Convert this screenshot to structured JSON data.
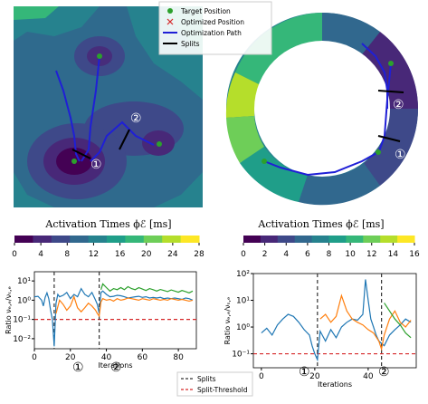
{
  "colormap": [
    "#440154",
    "#482878",
    "#3e4989",
    "#31688e",
    "#26828e",
    "#1f9e89",
    "#35b779",
    "#6ece58",
    "#b5de2b",
    "#fde725"
  ],
  "colors": {
    "target": "#2ca02c",
    "optimized": "#d62728",
    "path": "#1f1fd6",
    "split": "#000000",
    "ratio1": "#1f77b4",
    "ratio2": "#ff7f0e",
    "ratio3": "#2ca02c",
    "splits_line": "#333333",
    "threshold": "#d62728"
  },
  "legend_top": {
    "items": [
      {
        "label": "Target Position",
        "marker": "dot"
      },
      {
        "label": "Optimized Position",
        "marker": "x"
      },
      {
        "label": "Optimization Path",
        "marker": "line"
      },
      {
        "label": "Splits",
        "marker": "split"
      }
    ]
  },
  "legend_bottom": {
    "items": [
      {
        "label": "Splits",
        "style": "dashed-dark"
      },
      {
        "label": "Split-Threshold",
        "style": "dashed-red"
      }
    ]
  },
  "colorbars": [
    {
      "title": "Activation Times ϕℰ [ms]",
      "ticks": [
        "0",
        "4",
        "8",
        "12",
        "16",
        "20",
        "24",
        "28"
      ],
      "vmin": 0,
      "vmax": 28
    },
    {
      "title": "Activation Times ϕℰ [ms]",
      "ticks": [
        "0",
        "2",
        "4",
        "6",
        "8",
        "10",
        "12",
        "14",
        "16"
      ],
      "vmin": 0,
      "vmax": 16
    }
  ],
  "region_labels": [
    "①",
    "②"
  ],
  "chart_data": [
    {
      "type": "line",
      "title": "",
      "xlabel": "Iterations",
      "ylabel": "Ratio νₑ,ₑ/νₛ,ₑ",
      "yscale": "log",
      "xlim": [
        0,
        90
      ],
      "ylim": [
        0.003,
        30
      ],
      "xticks": [
        "0",
        "20",
        "40",
        "60",
        "80"
      ],
      "yticks": [
        "10⁻²",
        "10⁻¹",
        "10⁰",
        "10¹"
      ],
      "splits": [
        11,
        36
      ],
      "threshold": 0.1,
      "series": [
        {
          "x": [
            0,
            2,
            4,
            5,
            6,
            7,
            8,
            9,
            10,
            11,
            12,
            13,
            14,
            16,
            18,
            20,
            22,
            24,
            26,
            28,
            30,
            32,
            34,
            35,
            36,
            37,
            38,
            40,
            42,
            44,
            46,
            48,
            50,
            52,
            54,
            56,
            58,
            60,
            62,
            64,
            66,
            68,
            70,
            72,
            74,
            76,
            78,
            80,
            82,
            84,
            86,
            88
          ],
          "y": [
            1.5,
            1.6,
            1.0,
            0.5,
            1.4,
            2.4,
            1.2,
            0.3,
            0.1,
            0.004,
            0.7,
            2.0,
            1.5,
            1.8,
            2.5,
            1.2,
            2.0,
            1.5,
            4.0,
            2.0,
            1.5,
            2.5,
            1.0,
            0.6,
            0.2,
            2.5,
            3.0,
            2.0,
            1.5,
            1.6,
            1.8,
            1.7,
            1.5,
            1.3,
            1.4,
            1.5,
            1.6,
            1.4,
            1.5,
            1.3,
            1.4,
            1.3,
            1.4,
            1.2,
            1.3,
            1.2,
            1.3,
            1.2,
            1.1,
            1.3,
            1.2,
            1.0
          ]
        },
        {
          "x": [
            12,
            14,
            16,
            18,
            20,
            22,
            24,
            26,
            28,
            30,
            32,
            34,
            35,
            36,
            37,
            38,
            40,
            42,
            44,
            46,
            48,
            50,
            52,
            54,
            56,
            58,
            60,
            62,
            64,
            66,
            68,
            70,
            72,
            74,
            76,
            78,
            80,
            82,
            84,
            86,
            88
          ],
          "y": [
            0.2,
            1.0,
            0.6,
            0.3,
            0.5,
            1.5,
            0.4,
            0.25,
            0.4,
            0.7,
            0.5,
            0.3,
            0.2,
            0.15,
            0.8,
            1.2,
            1.0,
            1.1,
            0.9,
            1.2,
            1.0,
            1.1,
            1.3,
            1.2,
            1.1,
            1.0,
            1.2,
            1.1,
            1.0,
            1.2,
            1.1,
            1.0,
            1.1,
            1.0,
            1.2,
            1.1,
            1.0,
            1.1,
            1.0,
            0.9,
            1.0
          ]
        },
        {
          "x": [
            37,
            38,
            40,
            42,
            44,
            46,
            48,
            50,
            52,
            54,
            56,
            58,
            60,
            62,
            64,
            66,
            68,
            70,
            72,
            74,
            76,
            78,
            80,
            82,
            84,
            86,
            88
          ],
          "y": [
            3.5,
            7.0,
            4.5,
            3.0,
            4.0,
            3.5,
            4.5,
            3.5,
            5.0,
            4.0,
            3.5,
            4.5,
            3.8,
            3.2,
            4.0,
            3.5,
            3.0,
            3.6,
            3.2,
            2.8,
            3.4,
            3.0,
            2.6,
            3.2,
            2.8,
            2.4,
            3.0
          ]
        }
      ]
    },
    {
      "type": "line",
      "title": "",
      "xlabel": "Iterations",
      "ylabel": "Ratio νₑ,ₑ/νₛ,ₑ",
      "yscale": "log",
      "xlim": [
        -3,
        58
      ],
      "ylim": [
        0.03,
        100
      ],
      "xticks": [
        "0",
        "20",
        "40"
      ],
      "yticks": [
        "10⁻¹",
        "10⁰",
        "10¹",
        "10²"
      ],
      "splits": [
        21,
        45
      ],
      "threshold": 0.1,
      "series": [
        {
          "x": [
            0,
            2,
            4,
            6,
            8,
            10,
            12,
            14,
            16,
            18,
            19,
            20,
            21,
            22,
            24,
            26,
            28,
            30,
            32,
            34,
            36,
            38,
            39,
            40,
            41,
            42,
            43,
            44,
            46,
            48,
            50,
            52,
            54,
            56
          ],
          "y": [
            0.6,
            0.9,
            0.5,
            1.2,
            2.0,
            3.0,
            2.5,
            1.5,
            0.8,
            0.5,
            0.2,
            0.1,
            0.06,
            0.7,
            0.3,
            0.8,
            0.4,
            1.0,
            1.5,
            2.0,
            1.8,
            3.0,
            60,
            10,
            2.0,
            1.0,
            0.5,
            0.3,
            0.2,
            0.5,
            0.8,
            1.2,
            2.0,
            1.5
          ]
        },
        {
          "x": [
            22,
            24,
            26,
            28,
            30,
            32,
            34,
            36,
            38,
            40,
            42,
            44,
            45,
            46,
            48,
            50,
            52,
            54,
            56
          ],
          "y": [
            2.0,
            3.0,
            1.5,
            2.5,
            15,
            4.0,
            2.0,
            1.5,
            1.2,
            0.8,
            0.6,
            0.3,
            0.15,
            0.5,
            2.0,
            4.0,
            1.5,
            1.0,
            1.8
          ]
        },
        {
          "x": [
            46,
            48,
            50,
            52,
            54,
            56
          ],
          "y": [
            8.0,
            4.0,
            2.0,
            1.2,
            0.6,
            0.4
          ]
        }
      ]
    }
  ]
}
